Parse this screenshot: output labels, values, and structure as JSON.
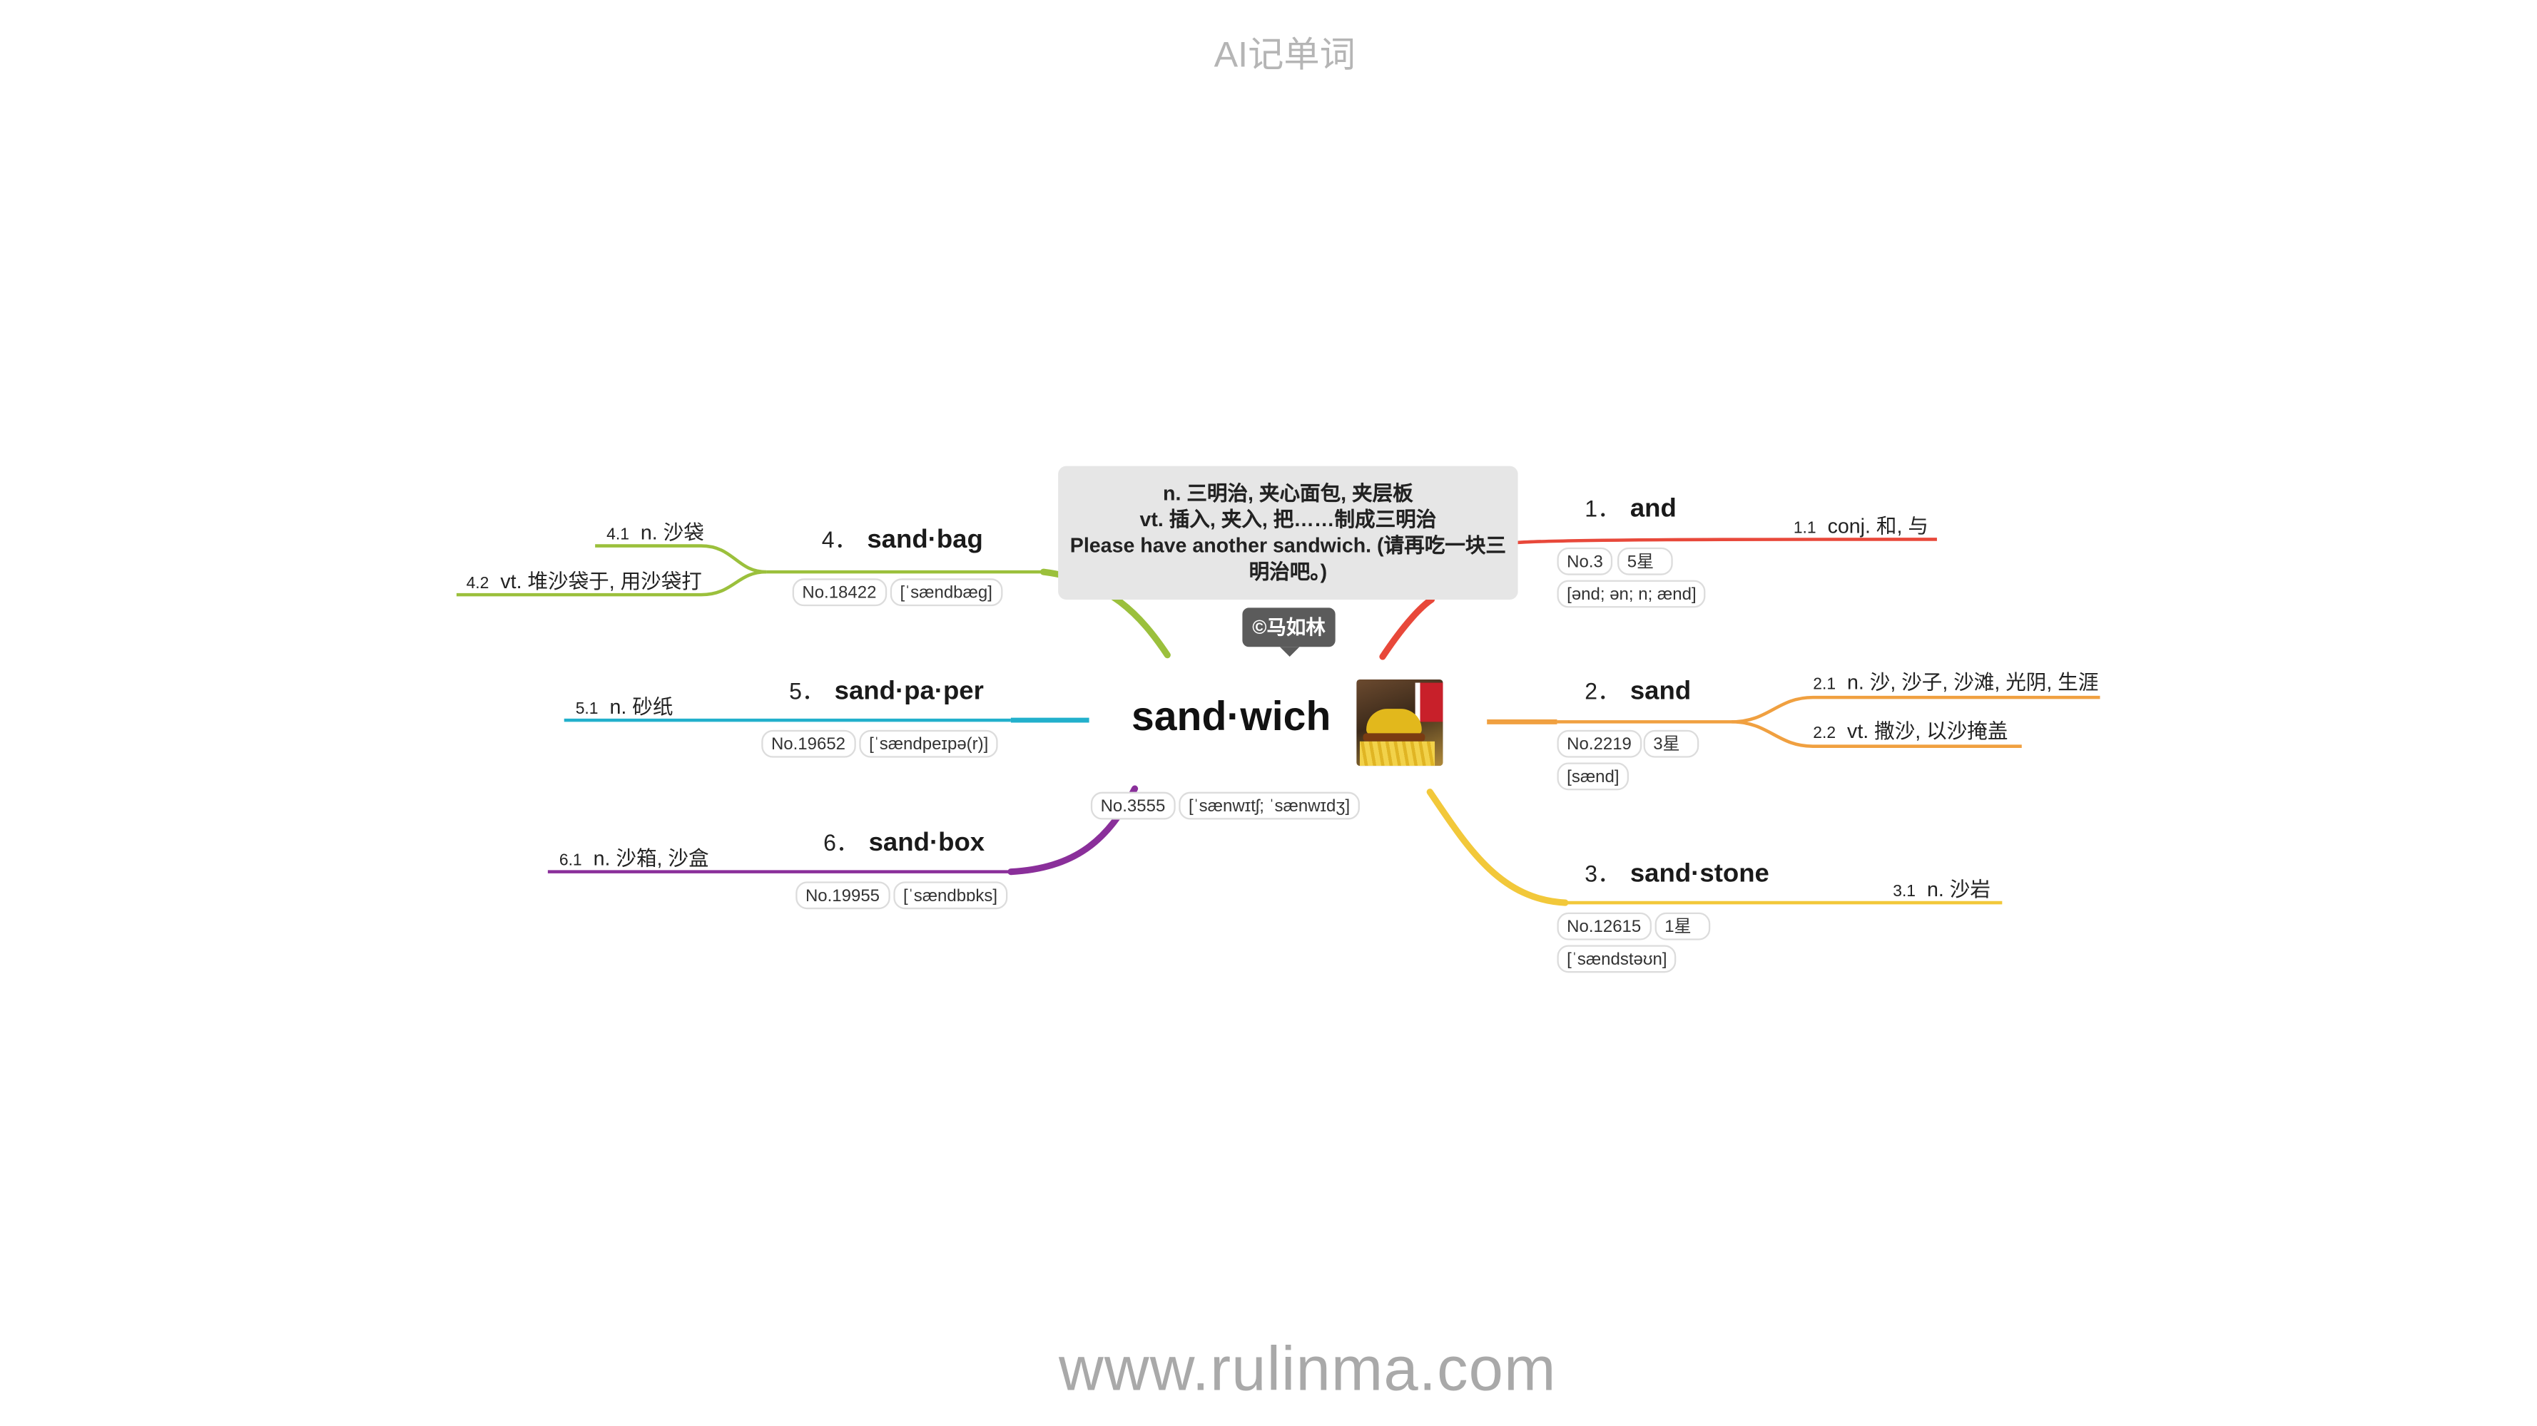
{
  "header": {
    "title": "AI记单词"
  },
  "footer": {
    "site": "www.rulinma.com"
  },
  "center": {
    "word": "sand·wich",
    "rank": "No.3555",
    "phonetic": "[ˈsænwɪtʃ; ˈsænwɪdʒ]",
    "definition_lines": [
      "n. 三明治, 夹心面包, 夹层板",
      "vt. 插入, 夹入, 把……制成三明治",
      "Please have another sandwich. (请再吃一块三明治吧。)"
    ],
    "author": "©马如林"
  },
  "branches": [
    {
      "index": "1．",
      "word": "and",
      "rank": "No.3",
      "stars": "5星",
      "phonetic": "[ənd; ən; n; ænd]",
      "color": "#e8483a",
      "senses": [
        {
          "index": "1.1",
          "text": "conj. 和, 与"
        }
      ]
    },
    {
      "index": "2．",
      "word": "sand",
      "rank": "No.2219",
      "stars": "3星",
      "phonetic": "[sænd]",
      "color": "#f0a040",
      "senses": [
        {
          "index": "2.1",
          "text": "n. 沙, 沙子, 沙滩, 光阴, 生涯"
        },
        {
          "index": "2.2",
          "text": "vt. 撒沙, 以沙掩盖"
        }
      ]
    },
    {
      "index": "3．",
      "word": "sand·stone",
      "rank": "No.12615",
      "stars": "1星",
      "phonetic": "[ˈsændstəʊn]",
      "color": "#f2c83a",
      "senses": [
        {
          "index": "3.1",
          "text": "n. 沙岩"
        }
      ]
    },
    {
      "index": "4．",
      "word": "sand·bag",
      "rank": "No.18422",
      "phonetic": "[ˈsændbæɡ]",
      "color": "#9bc03c",
      "senses": [
        {
          "index": "4.1",
          "text": "n. 沙袋"
        },
        {
          "index": "4.2",
          "text": "vt. 堆沙袋于, 用沙袋打"
        }
      ]
    },
    {
      "index": "5．",
      "word": "sand·pa·per",
      "rank": "No.19652",
      "phonetic": "[ˈsændpeɪpə(r)]",
      "color": "#22b0cc",
      "senses": [
        {
          "index": "5.1",
          "text": "n. 砂纸"
        }
      ]
    },
    {
      "index": "6．",
      "word": "sand·box",
      "rank": "No.19955",
      "phonetic": "[ˈsændbɒks]",
      "color": "#8a2f9a",
      "senses": [
        {
          "index": "6.1",
          "text": "n. 沙箱, 沙盒"
        }
      ]
    }
  ]
}
